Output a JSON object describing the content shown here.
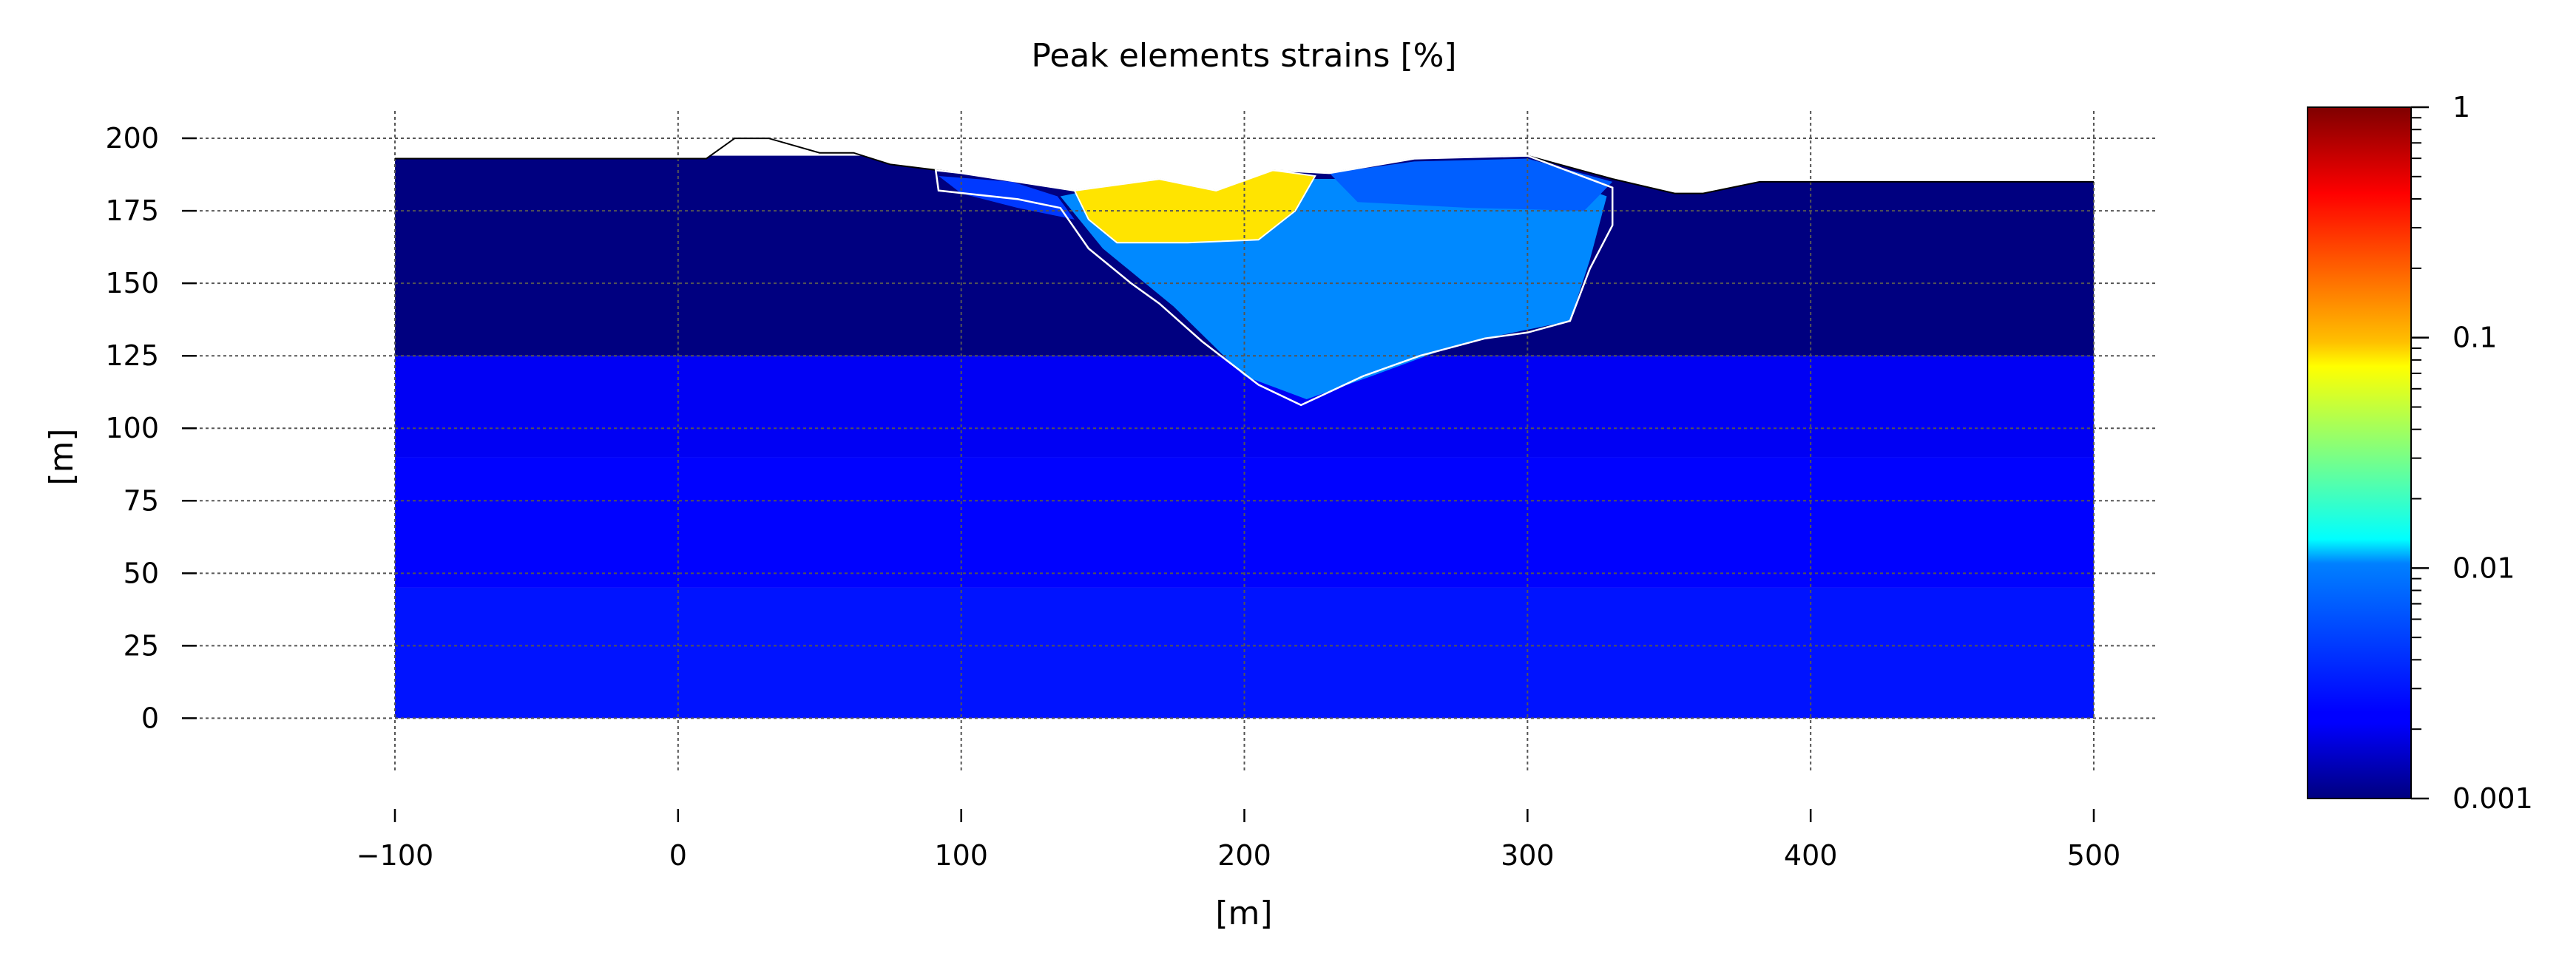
{
  "chart_data": {
    "type": "heatmap",
    "title": "Peak elements strains [%]",
    "xlabel": "[m]",
    "ylabel": "[m]",
    "xlim": [
      -135,
      535
    ],
    "ylim": [
      -18,
      212
    ],
    "x_ticks": [
      -100,
      0,
      100,
      200,
      300,
      400,
      500
    ],
    "x_tick_labels": [
      "−100",
      "0",
      "100",
      "200",
      "300",
      "400",
      "500"
    ],
    "y_ticks": [
      0,
      25,
      50,
      75,
      100,
      125,
      150,
      175,
      200
    ],
    "y_tick_labels": [
      "0",
      "25",
      "50",
      "75",
      "100",
      "125",
      "150",
      "175",
      "200"
    ],
    "grid": true,
    "colorbar": {
      "scale": "log",
      "colormap": "jet",
      "range": [
        0.001,
        1
      ],
      "tick_values": [
        0.001,
        0.01,
        0.1,
        1
      ],
      "tick_labels": [
        "0.001",
        "0.01",
        "0.1",
        "1"
      ]
    },
    "ground_surface": [
      [
        -100,
        193
      ],
      [
        10,
        193
      ],
      [
        20,
        200
      ],
      [
        32,
        200
      ],
      [
        50,
        195
      ],
      [
        62,
        195
      ],
      [
        75,
        191
      ],
      [
        100,
        188
      ],
      [
        140,
        182
      ],
      [
        170,
        186
      ],
      [
        190,
        182
      ],
      [
        210,
        189
      ],
      [
        230,
        188
      ],
      [
        260,
        193
      ],
      [
        300,
        194
      ],
      [
        330,
        186
      ],
      [
        352,
        181
      ],
      [
        362,
        181
      ],
      [
        382,
        185
      ],
      [
        500,
        185
      ]
    ],
    "slide_body_outline": [
      [
        91,
        189
      ],
      [
        92,
        182
      ],
      [
        120,
        179
      ],
      [
        135,
        176
      ],
      [
        145,
        162
      ],
      [
        160,
        150
      ],
      [
        170,
        143
      ],
      [
        185,
        130
      ],
      [
        205,
        115
      ],
      [
        220,
        108
      ],
      [
        242,
        118
      ],
      [
        262,
        125
      ],
      [
        285,
        131
      ],
      [
        300,
        133
      ],
      [
        315,
        137
      ],
      [
        322,
        155
      ],
      [
        330,
        170
      ],
      [
        330,
        183
      ],
      [
        300,
        194
      ],
      [
        260,
        193
      ],
      [
        230,
        188
      ],
      [
        210,
        189
      ],
      [
        190,
        182
      ],
      [
        170,
        186
      ],
      [
        140,
        182
      ],
      [
        100,
        188
      ]
    ],
    "high_strain_zone": {
      "value": 0.09,
      "polygon": [
        [
          140,
          182
        ],
        [
          170,
          186
        ],
        [
          190,
          182
        ],
        [
          210,
          189
        ],
        [
          225,
          187
        ],
        [
          218,
          175
        ],
        [
          205,
          165
        ],
        [
          180,
          164
        ],
        [
          155,
          164
        ],
        [
          145,
          172
        ]
      ]
    },
    "strain_regions": [
      {
        "value": 0.006,
        "polygon": [
          [
            135,
            180
          ],
          [
            150,
            162
          ],
          [
            175,
            142
          ],
          [
            200,
            118
          ],
          [
            222,
            110
          ],
          [
            245,
            118
          ],
          [
            270,
            127
          ],
          [
            290,
            132
          ],
          [
            300,
            134
          ],
          [
            315,
            137
          ],
          [
            322,
            158
          ],
          [
            328,
            180
          ],
          [
            300,
            190
          ],
          [
            240,
            186
          ],
          [
            210,
            186
          ],
          [
            190,
            181
          ],
          [
            170,
            185
          ],
          [
            140,
            181
          ]
        ]
      },
      {
        "value": 0.0045,
        "polygon": [
          [
            230,
            188
          ],
          [
            260,
            192
          ],
          [
            300,
            193
          ],
          [
            330,
            185
          ],
          [
            320,
            175
          ],
          [
            280,
            176
          ],
          [
            240,
            178
          ]
        ]
      },
      {
        "value": 0.0035,
        "polygon": [
          [
            92,
            187
          ],
          [
            118,
            185
          ],
          [
            134,
            180
          ],
          [
            140,
            172
          ],
          [
            120,
            176
          ],
          [
            100,
            181
          ]
        ]
      }
    ],
    "strain_layers": [
      {
        "value": 0.001,
        "y_range": [
          125,
          194
        ]
      },
      {
        "value": 0.0022,
        "y_range": [
          90,
          125
        ]
      },
      {
        "value": 0.0024,
        "y_range": [
          45,
          90
        ]
      },
      {
        "value": 0.0027,
        "y_range": [
          0,
          45
        ]
      }
    ]
  }
}
